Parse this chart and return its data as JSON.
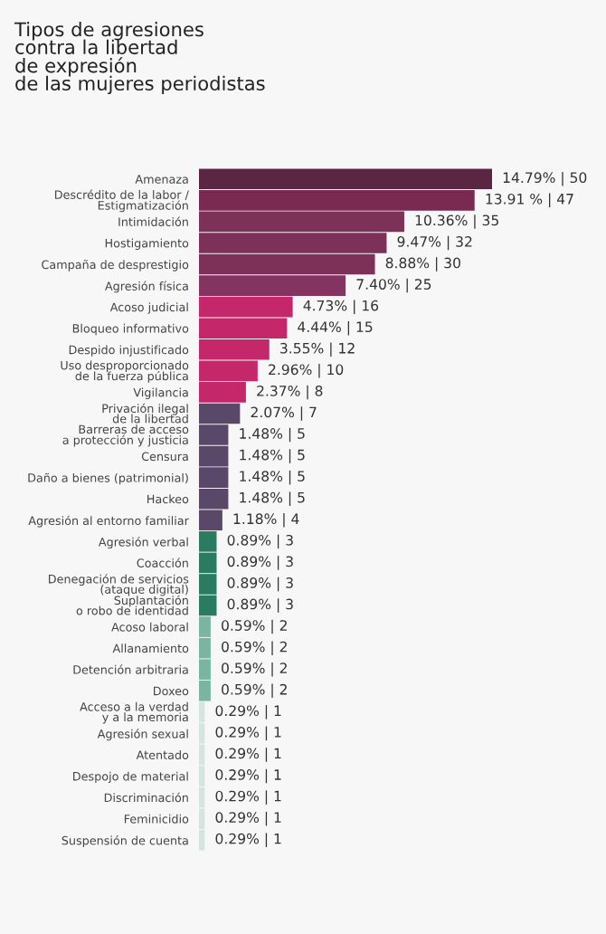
{
  "chart_data": {
    "type": "bar",
    "orientation": "horizontal",
    "title": "Tipos de agresiones\ncontra la libertad\nde expresión\nde las mujeres periodistas",
    "categories": [
      "Amenaza",
      "Descrédito de la labor /\nEstigmatización",
      "Intimidación",
      "Hostigamiento",
      "Campaña de desprestigio",
      "Agresión física",
      "Acoso judicial",
      "Bloqueo informativo",
      "Despido injustificado",
      "Uso desproporcionado\nde la fuerza pública",
      "Vigilancia",
      "Privación ilegal\nde la libertad",
      "Barreras de acceso\na protección y justicia",
      "Censura",
      "Daño a bienes (patrimonial)",
      "Hackeo",
      "Agresión al entorno familiar",
      "Agresión verbal",
      "Coacción",
      "Denegación de servicios\n(ataque digital)",
      "Suplantación\no robo de identidad",
      "Acoso laboral",
      "Allanamiento",
      "Detención arbitraria",
      "Doxeo",
      "Acceso a la verdad\ny a la memoria",
      "Agresión sexual",
      "Atentado",
      "Despojo de material",
      "Discriminación",
      "Feminicidio",
      "Suspensión de cuenta"
    ],
    "values": [
      14.79,
      13.91,
      10.36,
      9.47,
      8.88,
      7.4,
      4.73,
      4.44,
      3.55,
      2.96,
      2.37,
      2.07,
      1.48,
      1.48,
      1.48,
      1.48,
      1.18,
      0.89,
      0.89,
      0.89,
      0.89,
      0.59,
      0.59,
      0.59,
      0.59,
      0.29,
      0.29,
      0.29,
      0.29,
      0.29,
      0.29,
      0.29
    ],
    "value_labels": [
      "14.79% | 50",
      "13.91 % | 47",
      "10.36% | 35",
      "9.47% | 32",
      "8.88% | 30",
      "7.40% | 25",
      "4.73% | 16",
      "4.44% | 15",
      "3.55% | 12",
      "2.96% | 10",
      "2.37% | 8",
      "2.07% | 7",
      "1.48% | 5",
      "1.48% | 5",
      "1.48% | 5",
      "1.48% | 5",
      "1.18% | 4",
      "0.89% | 3",
      "0.89% | 3",
      "0.89% | 3",
      "0.89% | 3",
      "0.59% | 2",
      "0.59% | 2",
      "0.59% | 2",
      "0.59% | 2",
      "0.29% | 1",
      "0.29% | 1",
      "0.29% | 1",
      "0.29% | 1",
      "0.29% | 1",
      "0.29% | 1",
      "0.29% | 1"
    ],
    "colors": [
      "#5b2642",
      "#7a2a50",
      "#7d3058",
      "#7d3058",
      "#7d3058",
      "#833460",
      "#c4286a",
      "#c4286a",
      "#c4286a",
      "#c4286a",
      "#c4286a",
      "#5a4868",
      "#5a4868",
      "#5a4868",
      "#5a4868",
      "#5a4868",
      "#5a4868",
      "#2b7b62",
      "#2b7b62",
      "#2b7b62",
      "#2b7b62",
      "#7ab5a2",
      "#7ab5a2",
      "#7ab5a2",
      "#7ab5a2",
      "#d3e5de",
      "#d3e5de",
      "#d3e5de",
      "#d3e5de",
      "#d3e5de",
      "#d3e5de",
      "#d3e5de"
    ],
    "tick_labels": "y",
    "grid": false,
    "legend": false
  }
}
